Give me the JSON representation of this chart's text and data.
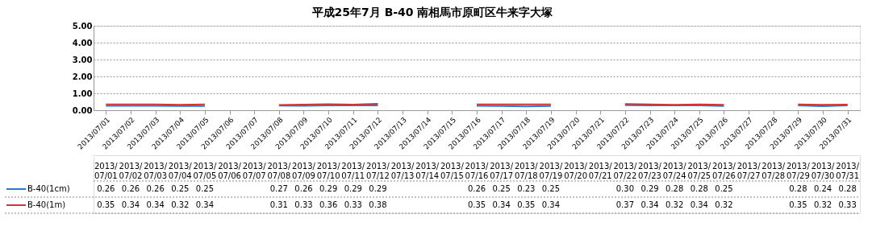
{
  "chart_data": {
    "type": "line",
    "title": "平成25年7月     B-40 南相馬市原町区牛来字大塚",
    "categories": [
      "2013/07/01",
      "2013/07/02",
      "2013/07/03",
      "2013/07/04",
      "2013/07/05",
      "2013/07/06",
      "2013/07/07",
      "2013/07/08",
      "2013/07/09",
      "2013/07/10",
      "2013/07/11",
      "2013/07/12",
      "2013/07/13",
      "2013/07/14",
      "2013/07/15",
      "2013/07/16",
      "2013/07/17",
      "2013/07/18",
      "2013/07/19",
      "2013/07/20",
      "2013/07/21",
      "2013/07/22",
      "2013/07/23",
      "2013/07/24",
      "2013/07/25",
      "2013/07/26",
      "2013/07/27",
      "2013/07/28",
      "2013/07/29",
      "2013/07/30",
      "2013/07/31"
    ],
    "series": [
      {
        "name": "B-40(1cm)",
        "color": "#2f78d0",
        "values": [
          0.26,
          0.26,
          0.26,
          0.25,
          0.25,
          null,
          null,
          0.27,
          0.26,
          0.29,
          0.29,
          0.29,
          null,
          null,
          null,
          0.26,
          0.25,
          0.23,
          0.25,
          null,
          null,
          0.3,
          0.29,
          0.28,
          0.28,
          0.25,
          null,
          null,
          0.28,
          0.24,
          0.28
        ],
        "value_labels": [
          "0.26",
          "0.26",
          "0.26",
          "0.25",
          "0.25",
          null,
          null,
          "0.27",
          "0.26",
          "0.29",
          "0.29",
          "0.29",
          null,
          null,
          null,
          "0.26",
          "0.25",
          "0.23",
          "0.25",
          null,
          null,
          "0.30",
          "0.29",
          "0.28",
          "0.28",
          "0.25",
          null,
          null,
          "0.28",
          "0.24",
          "0.28"
        ]
      },
      {
        "name": "B-40(1m)",
        "color": "#d03434",
        "values": [
          0.35,
          0.34,
          0.34,
          0.32,
          0.34,
          null,
          null,
          0.31,
          0.33,
          0.36,
          0.33,
          0.38,
          null,
          null,
          null,
          0.35,
          0.34,
          0.35,
          0.34,
          null,
          null,
          0.37,
          0.34,
          0.32,
          0.34,
          0.32,
          null,
          null,
          0.35,
          0.32,
          0.33
        ],
        "value_labels": [
          "0.35",
          "0.34",
          "0.34",
          "0.32",
          "0.34",
          null,
          null,
          "0.31",
          "0.33",
          "0.36",
          "0.33",
          "0.38",
          null,
          null,
          null,
          "0.35",
          "0.34",
          "0.35",
          "0.34",
          null,
          null,
          "0.37",
          "0.34",
          "0.32",
          "0.34",
          "0.32",
          null,
          null,
          "0.35",
          "0.32",
          "0.33"
        ]
      }
    ],
    "ylim": [
      0,
      5
    ],
    "yticks": [
      {
        "value": 0,
        "label": "0.00"
      },
      {
        "value": 1,
        "label": "1.00"
      },
      {
        "value": 2,
        "label": "2.00"
      },
      {
        "value": 3,
        "label": "3.00"
      },
      {
        "value": 4,
        "label": "4.00"
      },
      {
        "value": 5,
        "label": "5.00"
      }
    ],
    "grid": "y",
    "legend": "bottom left",
    "marker": "none",
    "line_style": "solid"
  }
}
